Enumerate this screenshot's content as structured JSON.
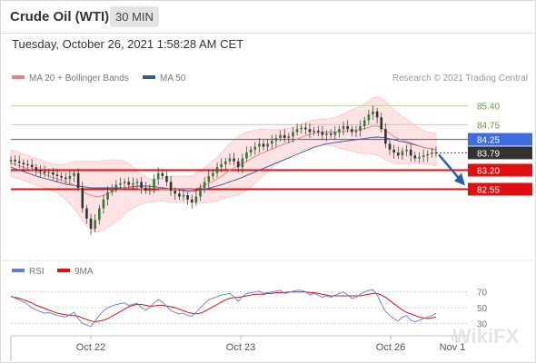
{
  "header": {
    "title": "Crude Oil (WTI)",
    "timeframe": "30 MIN",
    "datetime": "Tuesday, October 26, 2021 1:58:28 AM CET"
  },
  "legend": {
    "ma20": {
      "label": "MA 20 + Bollinger Bands",
      "color": "#f08080"
    },
    "ma50": {
      "label": "MA 50",
      "color": "#2e5a9e"
    },
    "research": "Research © 2021 Trading Central",
    "rsi": {
      "label": "RSI",
      "color": "#5c7fd6"
    },
    "ma9": {
      "label": "9MA",
      "color": "#e01010"
    }
  },
  "chart_data": [
    {
      "type": "candlestick",
      "ylim": [
        80.4,
        86.0
      ],
      "x_ticks": [
        "Oct 22",
        "Oct 23",
        "Oct 26",
        "Nov 1"
      ],
      "levels": [
        {
          "value": 85.4,
          "label": "85.40",
          "kind": "resistance",
          "color": "#b7d89a"
        },
        {
          "value": 84.75,
          "label": "84.75",
          "kind": "resistance",
          "color": "#b7d89a"
        },
        {
          "value": 84.25,
          "label": "84.25",
          "kind": "pivot",
          "color": "#3d6ee0"
        },
        {
          "value": 83.79,
          "label": "83.79",
          "kind": "last",
          "color": "#333333"
        },
        {
          "value": 83.2,
          "label": "83.20",
          "kind": "support",
          "color": "#e01010"
        },
        {
          "value": 82.55,
          "label": "82.55",
          "kind": "support",
          "color": "#e01010"
        }
      ],
      "closes": [
        83.55,
        83.5,
        83.45,
        83.4,
        83.38,
        83.3,
        83.2,
        83.15,
        83.1,
        83.12,
        83.05,
        83.0,
        82.95,
        82.9,
        83.0,
        83.1,
        82.6,
        81.9,
        81.55,
        81.2,
        81.5,
        81.9,
        82.2,
        82.45,
        82.6,
        82.7,
        82.75,
        82.8,
        82.7,
        82.75,
        82.8,
        82.6,
        82.5,
        82.6,
        82.9,
        83.1,
        83.0,
        82.8,
        82.5,
        82.4,
        82.3,
        82.35,
        82.2,
        82.1,
        82.3,
        82.6,
        82.8,
        83.0,
        83.1,
        83.3,
        83.4,
        83.5,
        83.6,
        83.5,
        83.3,
        83.6,
        83.8,
        83.9,
        84.0,
        84.1,
        84.0,
        84.1,
        84.2,
        84.3,
        84.4,
        84.3,
        84.35,
        84.5,
        84.6,
        84.65,
        84.6,
        84.5,
        84.55,
        84.5,
        84.4,
        84.45,
        84.4,
        84.5,
        84.6,
        84.7,
        84.6,
        84.5,
        84.55,
        84.7,
        84.9,
        85.1,
        85.2,
        85.0,
        84.6,
        84.1,
        83.9,
        83.8,
        83.7,
        83.85,
        83.9,
        83.7,
        83.6,
        83.65,
        83.7,
        83.75,
        83.8,
        83.79
      ],
      "ma20": [
        83.45,
        83.4,
        83.35,
        83.3,
        83.25,
        83.2,
        83.15,
        83.1,
        83.05,
        83.0,
        82.95,
        82.9,
        82.85,
        82.8,
        82.75,
        82.7,
        82.6,
        82.5,
        82.4,
        82.35,
        82.3,
        82.3,
        82.35,
        82.4,
        82.45,
        82.5,
        82.55,
        82.6,
        82.62,
        82.6,
        82.58,
        82.55,
        82.52,
        82.5,
        82.5,
        82.52,
        82.55,
        82.55,
        82.55,
        82.55,
        82.55,
        82.55,
        82.55,
        82.55,
        82.58,
        82.62,
        82.68,
        82.75,
        82.82,
        82.9,
        83.0,
        83.1,
        83.2,
        83.28,
        83.35,
        83.42,
        83.5,
        83.58,
        83.66,
        83.74,
        83.8,
        83.86,
        83.92,
        83.98,
        84.04,
        84.1,
        84.15,
        84.2,
        84.26,
        84.32,
        84.37,
        84.42,
        84.46,
        84.48,
        84.5,
        84.5,
        84.5,
        84.5,
        84.5,
        84.52,
        84.54,
        84.55,
        84.56,
        84.58,
        84.62,
        84.66,
        84.7,
        84.7,
        84.65,
        84.55,
        84.45,
        84.35,
        84.28,
        84.22,
        84.18,
        84.13,
        84.08,
        84.03,
        83.98,
        83.95,
        83.92,
        83.9
      ],
      "ma50": [
        83.3,
        83.25,
        83.2,
        83.15,
        83.1,
        83.05,
        83.0,
        82.96,
        82.92,
        82.88,
        82.84,
        82.8,
        82.76,
        82.72,
        82.7,
        82.68,
        82.66,
        82.64,
        82.62,
        82.6,
        82.6,
        82.6,
        82.6,
        82.6,
        82.6,
        82.6,
        82.6,
        82.6,
        82.62,
        82.64,
        82.66,
        82.66,
        82.66,
        82.65,
        82.64,
        82.62,
        82.6,
        82.58,
        82.56,
        82.54,
        82.52,
        82.5,
        82.48,
        82.48,
        82.5,
        82.52,
        82.55,
        82.58,
        82.62,
        82.66,
        82.7,
        82.75,
        82.8,
        82.85,
        82.9,
        82.96,
        83.02,
        83.08,
        83.14,
        83.2,
        83.26,
        83.32,
        83.38,
        83.44,
        83.5,
        83.56,
        83.62,
        83.68,
        83.74,
        83.8,
        83.86,
        83.92,
        83.98,
        84.02,
        84.06,
        84.1,
        84.12,
        84.14,
        84.16,
        84.18,
        84.2,
        84.22,
        84.24,
        84.26,
        84.28,
        84.3,
        84.32,
        84.33,
        84.32,
        84.3,
        84.27,
        84.24,
        84.2,
        84.17,
        84.14,
        84.1,
        84.06,
        84.02,
        83.98,
        83.95,
        83.92,
        83.9
      ],
      "bb_width": [
        0.45,
        0.45,
        0.45,
        0.45,
        0.45,
        0.45,
        0.45,
        0.45,
        0.45,
        0.45,
        0.45,
        0.48,
        0.52,
        0.6,
        0.7,
        0.8,
        0.9,
        1.0,
        1.1,
        1.15,
        1.2,
        1.2,
        1.18,
        1.15,
        1.1,
        1.05,
        1.0,
        0.9,
        0.8,
        0.7,
        0.6,
        0.5,
        0.45,
        0.4,
        0.38,
        0.38,
        0.4,
        0.42,
        0.45,
        0.45,
        0.45,
        0.45,
        0.45,
        0.45,
        0.5,
        0.55,
        0.6,
        0.65,
        0.7,
        0.75,
        0.8,
        0.85,
        0.9,
        0.95,
        1.0,
        1.0,
        1.0,
        0.95,
        0.9,
        0.85,
        0.8,
        0.72,
        0.65,
        0.6,
        0.55,
        0.5,
        0.48,
        0.46,
        0.45,
        0.45,
        0.45,
        0.45,
        0.45,
        0.45,
        0.45,
        0.45,
        0.45,
        0.5,
        0.55,
        0.6,
        0.65,
        0.7,
        0.75,
        0.8,
        0.85,
        0.9,
        0.95,
        1.0,
        1.0,
        1.0,
        0.95,
        0.9,
        0.85,
        0.8,
        0.75,
        0.7,
        0.65,
        0.6,
        0.58,
        0.55,
        0.55,
        0.55
      ]
    },
    {
      "type": "line",
      "name": "RSI panel",
      "ylim": [
        20,
        80
      ],
      "y_ticks": [
        {
          "value": 70,
          "label": "70"
        },
        {
          "value": 50,
          "label": "50"
        },
        {
          "value": 30,
          "label": "30"
        }
      ],
      "x_ticks": [
        "Oct 22",
        "Oct 23",
        "Oct 26",
        "Nov 1"
      ],
      "rsi": [
        65,
        62,
        60,
        57,
        54,
        50,
        47,
        45,
        43,
        44,
        42,
        40,
        39,
        38,
        41,
        44,
        36,
        30,
        28,
        26,
        33,
        40,
        46,
        50,
        52,
        54,
        55,
        56,
        53,
        54,
        56,
        50,
        47,
        50,
        56,
        60,
        57,
        52,
        46,
        44,
        42,
        43,
        40,
        39,
        44,
        50,
        55,
        60,
        62,
        64,
        66,
        67,
        68,
        64,
        58,
        64,
        68,
        69,
        70,
        71,
        68,
        69,
        70,
        71,
        72,
        68,
        69,
        71,
        72,
        72,
        70,
        66,
        68,
        66,
        63,
        65,
        63,
        66,
        68,
        70,
        66,
        62,
        63,
        67,
        70,
        72,
        73,
        66,
        55,
        45,
        40,
        36,
        33,
        38,
        40,
        34,
        32,
        34,
        36,
        38,
        40,
        43
      ],
      "ma9": [
        64,
        63,
        62,
        60,
        58,
        56,
        53,
        51,
        49,
        47,
        45,
        43,
        42,
        41,
        40,
        40,
        39,
        37,
        35,
        33,
        32,
        33,
        34,
        36,
        39,
        42,
        45,
        48,
        51,
        53,
        54,
        54,
        53,
        52,
        52,
        53,
        53,
        52,
        51,
        50,
        48,
        46,
        44,
        43,
        42,
        43,
        45,
        48,
        51,
        54,
        57,
        60,
        62,
        63,
        63,
        64,
        65,
        66,
        67,
        67,
        67,
        68,
        68,
        69,
        69,
        69,
        70,
        70,
        70,
        70,
        70,
        69,
        69,
        68,
        67,
        66,
        65,
        65,
        65,
        65,
        65,
        65,
        65,
        65,
        66,
        67,
        68,
        68,
        66,
        63,
        59,
        55,
        51,
        47,
        44,
        42,
        40,
        38,
        37,
        36,
        37,
        38
      ]
    }
  ],
  "watermark": "WikiFX"
}
